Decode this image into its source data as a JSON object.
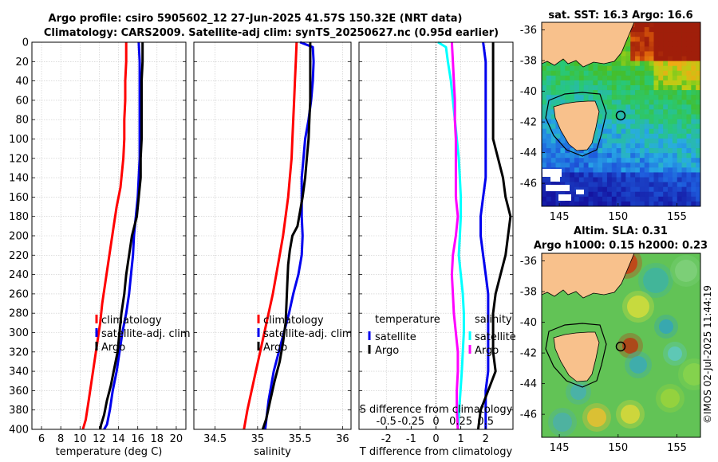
{
  "title": {
    "line1": "Argo profile: csiro 5905602_12 27-Jun-2025 41.57S 150.32E (NRT data)",
    "line2": "Climatology: CARS2009. Satellite-adj clim: synTS_20250627.nc (0.95d earlier)"
  },
  "watermark": "©IMOS 02-Jul-2025 11:44:19",
  "colors": {
    "climatology": "#ff0000",
    "satellite": "#0000ee",
    "argo": "#000000",
    "temp_diff": "#00ffff",
    "sal_diff": "#ff00ff",
    "land": "#f8c18c",
    "grid": "#c8c8c8"
  },
  "chart_data": [
    {
      "id": "temperature",
      "type": "line",
      "xlabel": "temperature (deg C)",
      "ylabel": "",
      "xlim": [
        5,
        21
      ],
      "ylim": [
        0,
        400
      ],
      "xticks": [
        6,
        8,
        10,
        12,
        14,
        16,
        18,
        20
      ],
      "xtick_labels": [
        "6",
        "8",
        "10",
        "12",
        "14",
        "16",
        "18",
        "20"
      ],
      "yticks": [
        0,
        20,
        40,
        60,
        80,
        100,
        120,
        140,
        160,
        180,
        200,
        220,
        240,
        260,
        280,
        300,
        320,
        340,
        360,
        380,
        400
      ],
      "ytick_labels": [
        "0",
        "20",
        "40",
        "60",
        "80",
        "100",
        "120",
        "140",
        "160",
        "180",
        "200",
        "220",
        "240",
        "260",
        "280",
        "300",
        "320",
        "340",
        "360",
        "380",
        "400"
      ],
      "grid": true,
      "legend": [
        "climatology",
        "satellite-adj. clim",
        "Argo"
      ],
      "legend_position": "bottom-right",
      "series": [
        {
          "name": "climatology",
          "color": "#ff0000",
          "x": [
            14.8,
            14.8,
            14.7,
            14.7,
            14.6,
            14.6,
            14.5,
            14.4,
            14.3,
            14.2,
            13.8,
            13.5,
            13.2,
            12.9,
            12.6,
            12.3,
            12.1,
            11.8,
            11.5,
            11.2,
            10.9,
            10.6,
            10.3
          ],
          "y": [
            0,
            20,
            40,
            60,
            80,
            100,
            120,
            130,
            140,
            150,
            170,
            190,
            210,
            230,
            250,
            270,
            290,
            310,
            330,
            350,
            370,
            390,
            400
          ]
        },
        {
          "name": "satellite-adj. clim",
          "color": "#0000ee",
          "x": [
            16.1,
            16.2,
            16.2,
            16.2,
            16.2,
            16.2,
            16.2,
            16.1,
            16.0,
            15.8,
            15.6,
            15.5,
            15.3,
            15.1,
            14.8,
            14.4,
            14.1,
            13.8,
            13.4,
            13.1,
            12.8,
            12.5
          ],
          "y": [
            0,
            20,
            40,
            60,
            80,
            100,
            120,
            140,
            160,
            180,
            200,
            220,
            240,
            260,
            280,
            300,
            320,
            340,
            360,
            380,
            395,
            400
          ]
        },
        {
          "name": "Argo",
          "color": "#000000",
          "x": [
            16.5,
            16.5,
            16.4,
            16.4,
            16.4,
            16.4,
            16.3,
            16.3,
            16.1,
            15.9,
            15.4,
            15.1,
            14.8,
            14.6,
            14.3,
            14.1,
            13.9,
            13.5,
            13.2,
            12.8,
            12.5,
            12.2,
            12.1
          ],
          "y": [
            0,
            20,
            40,
            60,
            80,
            100,
            120,
            140,
            160,
            180,
            200,
            220,
            240,
            260,
            280,
            300,
            320,
            340,
            355,
            370,
            385,
            395,
            400
          ]
        }
      ]
    },
    {
      "id": "salinity",
      "type": "line",
      "xlabel": "salinity",
      "xlim": [
        34.25,
        36.1
      ],
      "ylim": [
        0,
        400
      ],
      "xticks": [
        34.5,
        35,
        35.5,
        36
      ],
      "xtick_labels": [
        "34.5",
        "35",
        "35.5",
        "36"
      ],
      "yticks": [
        0,
        20,
        40,
        60,
        80,
        100,
        120,
        140,
        160,
        180,
        200,
        220,
        240,
        260,
        280,
        300,
        320,
        340,
        360,
        380,
        400
      ],
      "grid": true,
      "legend": [
        "climatology",
        "satellite-adj. clim",
        "Argo"
      ],
      "legend_position": "bottom-right",
      "series": [
        {
          "name": "climatology",
          "color": "#ff0000",
          "x": [
            35.46,
            35.45,
            35.44,
            35.43,
            35.42,
            35.41,
            35.4,
            35.38,
            35.36,
            35.33,
            35.3,
            35.26,
            35.22,
            35.18,
            35.13,
            35.08,
            35.03,
            34.98,
            34.93,
            34.88,
            34.84
          ],
          "y": [
            0,
            20,
            40,
            60,
            80,
            100,
            120,
            140,
            160,
            180,
            200,
            220,
            240,
            260,
            280,
            300,
            320,
            340,
            360,
            380,
            400
          ]
        },
        {
          "name": "satellite-adj. clim",
          "color": "#0000ee",
          "x": [
            35.5,
            35.65,
            35.66,
            35.65,
            35.63,
            35.6,
            35.56,
            35.54,
            35.52,
            35.52,
            35.52,
            35.53,
            35.52,
            35.48,
            35.42,
            35.37,
            35.31,
            35.25,
            35.19,
            35.13,
            35.09
          ],
          "y": [
            0,
            5,
            20,
            40,
            60,
            80,
            100,
            120,
            140,
            160,
            180,
            200,
            220,
            240,
            260,
            280,
            300,
            320,
            340,
            370,
            400
          ]
        },
        {
          "name": "Argo",
          "color": "#000000",
          "x": [
            35.62,
            35.62,
            35.62,
            35.62,
            35.61,
            35.6,
            35.58,
            35.56,
            35.53,
            35.5,
            35.47,
            35.41,
            35.38,
            35.36,
            35.35,
            35.34,
            35.33,
            35.3,
            35.26,
            35.2,
            35.15,
            35.1,
            35.06
          ],
          "y": [
            0,
            20,
            40,
            60,
            80,
            100,
            120,
            140,
            160,
            175,
            190,
            200,
            215,
            230,
            250,
            270,
            290,
            310,
            330,
            350,
            370,
            390,
            400
          ]
        }
      ]
    },
    {
      "id": "difference",
      "type": "line",
      "xlabel": "T difference from climatology",
      "xlabel_top": "S difference from climatology",
      "xlim": [
        -3.1,
        3.1
      ],
      "ylim": [
        0,
        400
      ],
      "xticks": [
        -2,
        -1,
        0,
        1,
        2
      ],
      "xtick_labels": [
        "-2",
        "-1",
        "0",
        "1",
        "2"
      ],
      "sticks": [
        -0.5,
        -0.25,
        0,
        0.25,
        0.5
      ],
      "stick_labels": [
        "-0.5",
        "-0.25",
        "0",
        "0.25",
        "0.5"
      ],
      "s_scale_per_unit": 4,
      "yticks": [
        0,
        20,
        40,
        60,
        80,
        100,
        120,
        140,
        160,
        180,
        200,
        220,
        240,
        260,
        280,
        300,
        320,
        340,
        360,
        380,
        400
      ],
      "grid": true,
      "zero_line": "dotted",
      "legend_left_title": "temperature",
      "legend_left": [
        "satellite",
        "Argo"
      ],
      "legend_right_title": "salinity",
      "legend_right": [
        "satellite",
        "Argo"
      ],
      "series": [
        {
          "name": "T satellite",
          "color": "#0000ee",
          "x": [
            1.9,
            2.0,
            2.0,
            2.0,
            2.0,
            2.0,
            2.0,
            2.0,
            1.9,
            1.8,
            1.8,
            1.9,
            2.0,
            2.1,
            2.1,
            2.1,
            2.1,
            2.1,
            2.0,
            2.0,
            2.0
          ],
          "y": [
            0,
            20,
            40,
            60,
            80,
            100,
            120,
            140,
            160,
            180,
            200,
            220,
            240,
            260,
            280,
            300,
            320,
            340,
            360,
            380,
            400
          ]
        },
        {
          "name": "T Argo",
          "color": "#000000",
          "x": [
            2.3,
            2.3,
            2.3,
            2.3,
            2.3,
            2.3,
            2.5,
            2.7,
            2.8,
            3.0,
            2.9,
            2.8,
            2.6,
            2.4,
            2.3,
            2.3,
            2.3,
            2.4,
            2.1,
            1.8,
            1.7
          ],
          "y": [
            0,
            20,
            40,
            60,
            80,
            100,
            120,
            140,
            160,
            180,
            200,
            220,
            240,
            260,
            280,
            300,
            320,
            340,
            360,
            380,
            400
          ]
        },
        {
          "name": "S satellite",
          "color": "#00ffff",
          "x": [
            0.02,
            0.1,
            0.12,
            0.15,
            0.17,
            0.19,
            0.21,
            0.23,
            0.24,
            0.25,
            0.25,
            0.24,
            0.23,
            0.25,
            0.27,
            0.28,
            0.28,
            0.27,
            0.26,
            0.24,
            0.22
          ],
          "y": [
            0,
            5,
            20,
            40,
            60,
            80,
            100,
            120,
            140,
            160,
            180,
            200,
            220,
            240,
            260,
            280,
            300,
            320,
            340,
            370,
            400
          ]
        },
        {
          "name": "S Argo",
          "color": "#ff00ff",
          "x": [
            0.16,
            0.17,
            0.18,
            0.19,
            0.19,
            0.2,
            0.2,
            0.2,
            0.2,
            0.22,
            0.2,
            0.17,
            0.16,
            0.17,
            0.18,
            0.2,
            0.22,
            0.22,
            0.21,
            0.21,
            0.22
          ],
          "y": [
            0,
            20,
            40,
            60,
            80,
            100,
            120,
            140,
            160,
            180,
            200,
            220,
            240,
            260,
            280,
            300,
            320,
            340,
            360,
            380,
            400
          ]
        }
      ]
    },
    {
      "id": "sst_map",
      "type": "heatmap",
      "title": "sat. SST: 16.3 Argo: 16.6",
      "xlim": [
        143.5,
        157
      ],
      "ylim": [
        -47.5,
        -35.5
      ],
      "xticks": [
        145,
        150,
        155
      ],
      "xtick_labels": [
        "145",
        "150",
        "155"
      ],
      "yticks": [
        -36,
        -38,
        -40,
        -42,
        -44,
        -46
      ],
      "ytick_labels": [
        "-36",
        "-38",
        "-40",
        "-42",
        "-44",
        "-46"
      ],
      "profile_location": [
        150.32,
        -41.57
      ]
    },
    {
      "id": "sla_map",
      "type": "heatmap",
      "title": "Altim. SLA: 0.31",
      "subtitle": "Argo h1000: 0.15 h2000: 0.23",
      "xlim": [
        143.5,
        157
      ],
      "ylim": [
        -47.5,
        -35.5
      ],
      "xticks": [
        145,
        150,
        155
      ],
      "xtick_labels": [
        "145",
        "150",
        "155"
      ],
      "yticks": [
        -36,
        -38,
        -40,
        -42,
        -44,
        -46
      ],
      "ytick_labels": [
        "-36",
        "-38",
        "-40",
        "-42",
        "-44",
        "-46"
      ],
      "profile_location": [
        150.32,
        -41.57
      ]
    }
  ]
}
